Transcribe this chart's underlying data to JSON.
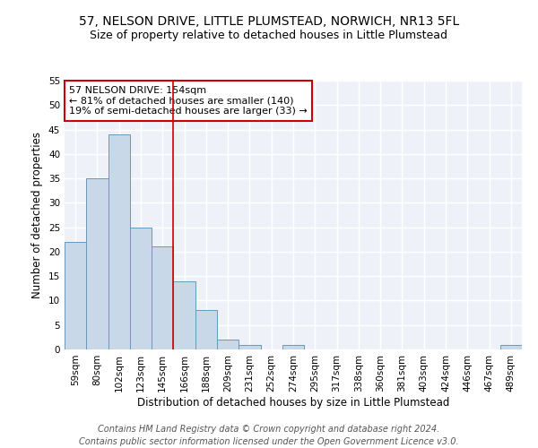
{
  "title": "57, NELSON DRIVE, LITTLE PLUMSTEAD, NORWICH, NR13 5FL",
  "subtitle": "Size of property relative to detached houses in Little Plumstead",
  "xlabel": "Distribution of detached houses by size in Little Plumstead",
  "ylabel": "Number of detached properties",
  "categories": [
    "59sqm",
    "80sqm",
    "102sqm",
    "123sqm",
    "145sqm",
    "166sqm",
    "188sqm",
    "209sqm",
    "231sqm",
    "252sqm",
    "274sqm",
    "295sqm",
    "317sqm",
    "338sqm",
    "360sqm",
    "381sqm",
    "403sqm",
    "424sqm",
    "446sqm",
    "467sqm",
    "489sqm"
  ],
  "values": [
    22,
    35,
    44,
    25,
    21,
    14,
    8,
    2,
    1,
    0,
    1,
    0,
    0,
    0,
    0,
    0,
    0,
    0,
    0,
    0,
    1
  ],
  "bar_color": "#c8d8e8",
  "bar_edge_color": "#6699bb",
  "ylim": [
    0,
    55
  ],
  "yticks": [
    0,
    5,
    10,
    15,
    20,
    25,
    30,
    35,
    40,
    45,
    50,
    55
  ],
  "vline_x": 4.5,
  "vline_color": "#cc0000",
  "annotation_title": "57 NELSON DRIVE: 154sqm",
  "annotation_line1": "← 81% of detached houses are smaller (140)",
  "annotation_line2": "19% of semi-detached houses are larger (33) →",
  "annotation_box_color": "#cc0000",
  "footer_line1": "Contains HM Land Registry data © Crown copyright and database right 2024.",
  "footer_line2": "Contains public sector information licensed under the Open Government Licence v3.0.",
  "background_color": "#eef2f8",
  "grid_color": "#ffffff",
  "title_fontsize": 10,
  "subtitle_fontsize": 9,
  "axis_label_fontsize": 8.5,
  "tick_fontsize": 7.5,
  "annotation_fontsize": 8,
  "footer_fontsize": 7
}
